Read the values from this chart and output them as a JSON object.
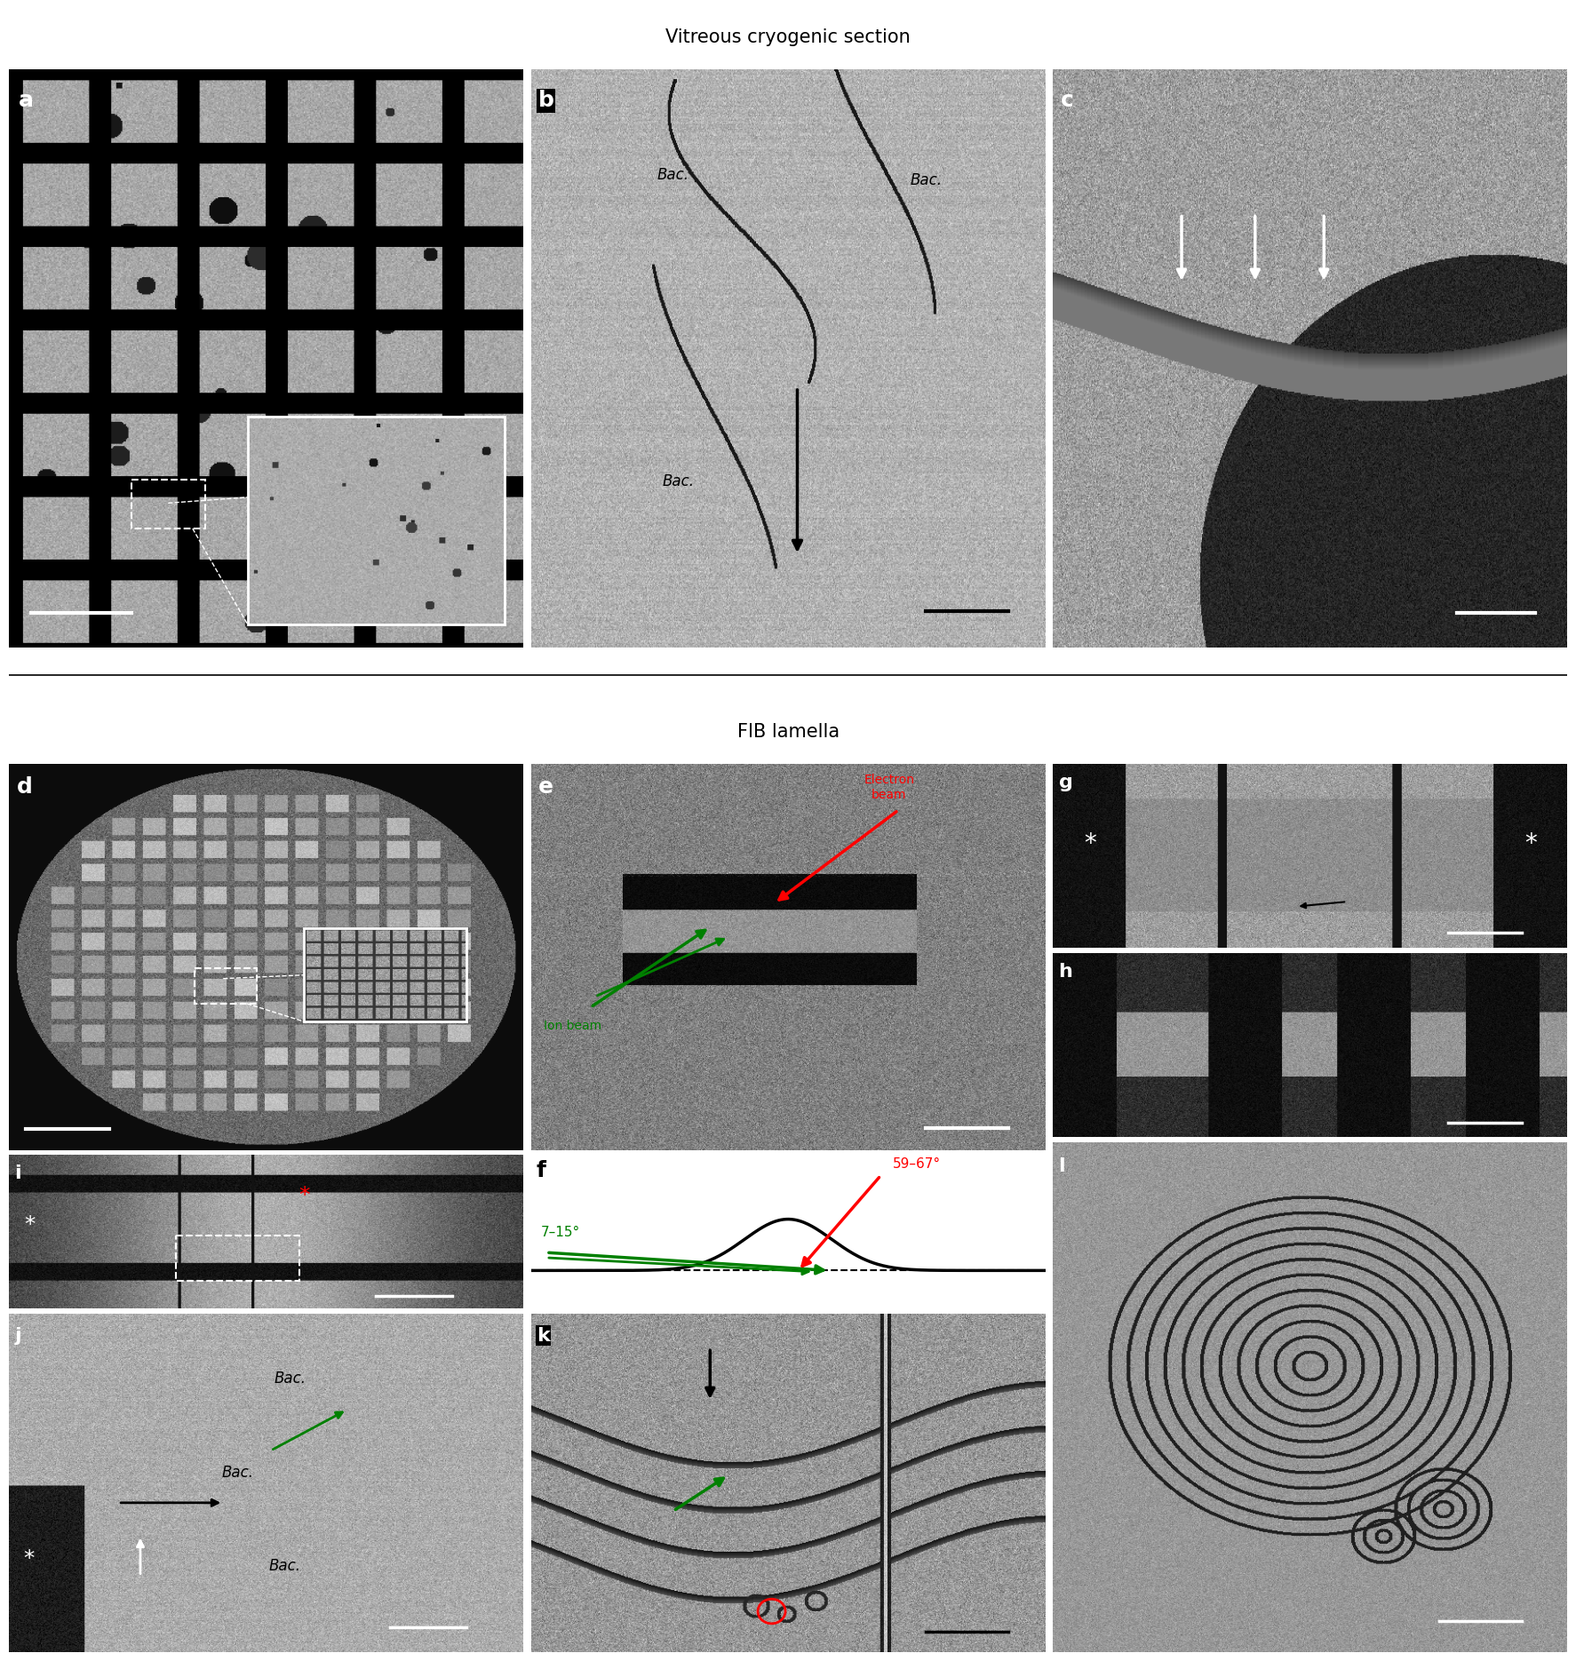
{
  "title_top": "Vitreous cryogenic section",
  "title_mid": "FIB lamella",
  "background": "#ffffff",
  "panel_label_color": "#ffffff",
  "panel_label_color_dark": "#000000",
  "text_electron_beam": "Electron\nbeam",
  "text_ion_beam": "Ion beam",
  "text_angle1": "59–67°",
  "text_angle2": "7–15°",
  "scale_bar_color": "#ffffff",
  "scale_bar_color_dark": "#000000"
}
